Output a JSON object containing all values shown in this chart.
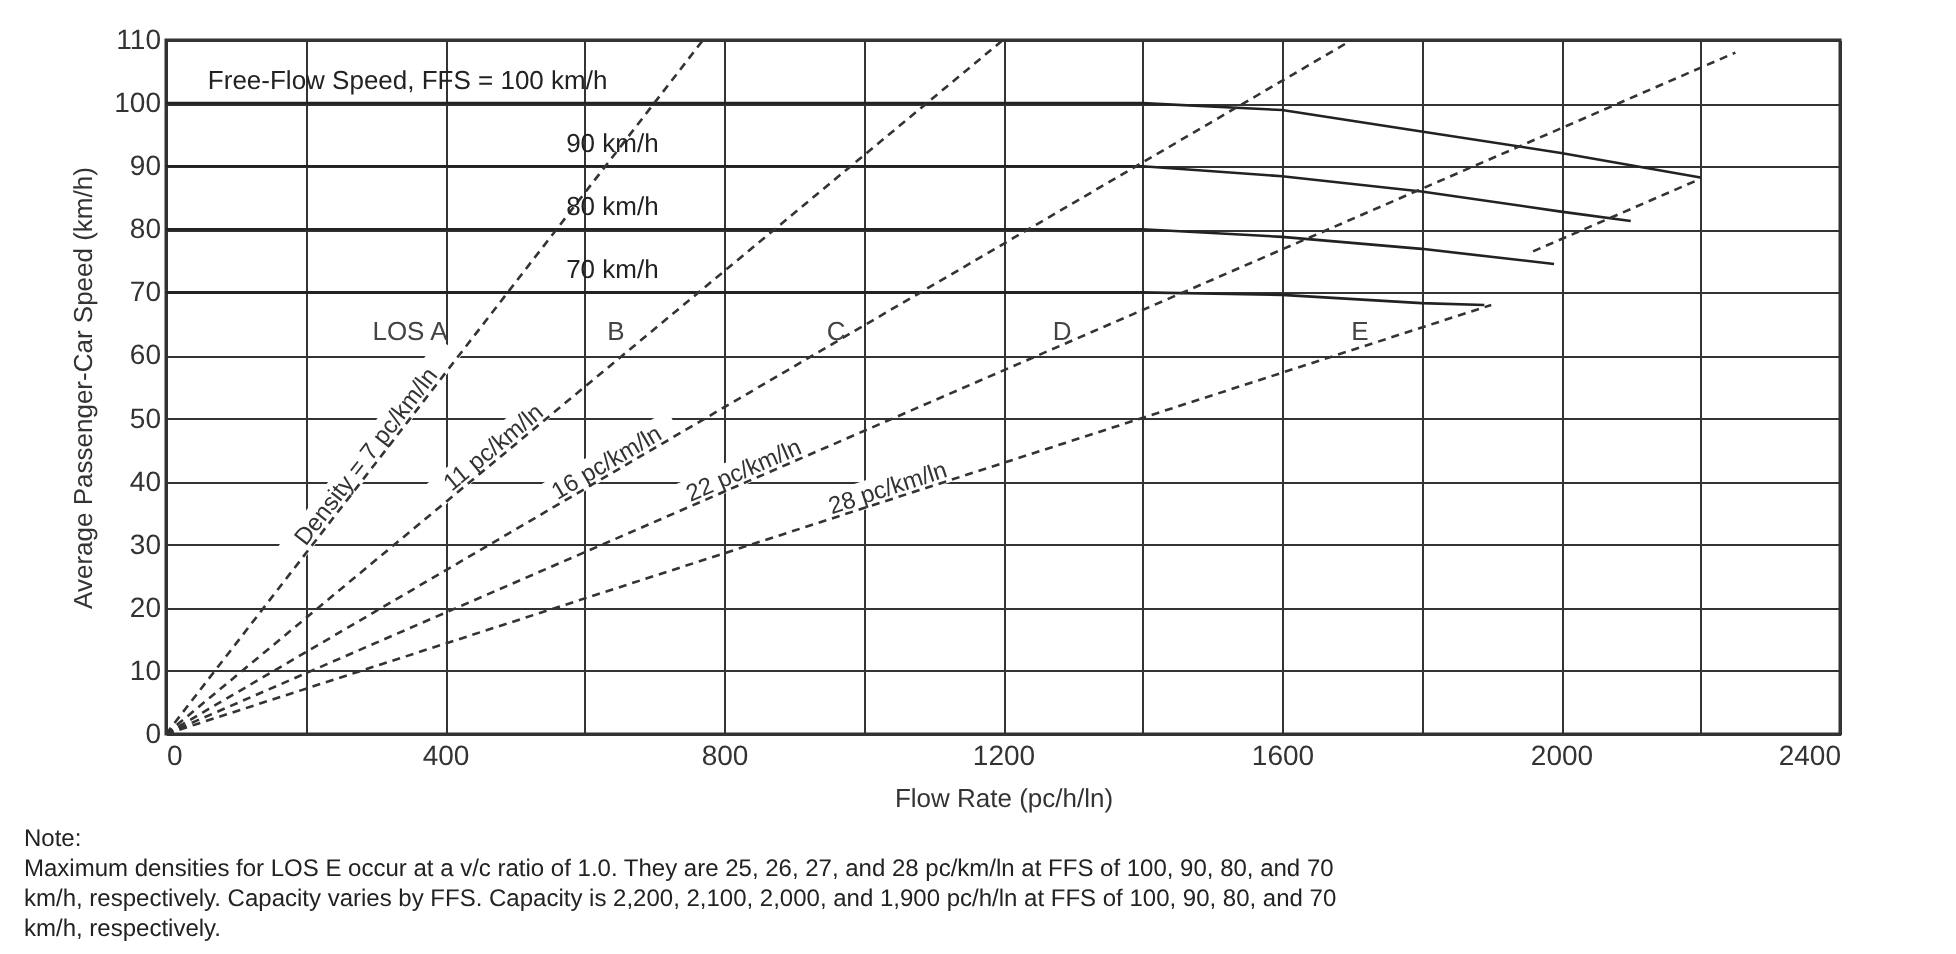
{
  "chart_data": {
    "type": "line",
    "xlabel": "Flow Rate (pc/h/ln)",
    "ylabel": "Average Passenger-Car Speed (km/h)",
    "xlim": [
      0,
      2400
    ],
    "ylim": [
      0,
      110
    ],
    "xticks": [
      0,
      {
        "value": 200,
        "label": null
      },
      400,
      {
        "value": 600,
        "label": null
      },
      800,
      {
        "value": 1000,
        "label": null
      },
      1200,
      {
        "value": 1400,
        "label": null
      },
      1600,
      {
        "value": 1800,
        "label": null
      },
      2000,
      {
        "value": 2200,
        "label": null
      },
      2400
    ],
    "yticks": [
      0,
      10,
      20,
      30,
      40,
      50,
      60,
      70,
      80,
      90,
      100,
      110
    ],
    "grid": true,
    "legend": false,
    "series": [
      {
        "name": "Free-Flow Speed, FFS = 100 km/h",
        "color": "#222222",
        "line_style": "solid",
        "x": [
          0,
          1400,
          1600,
          1800,
          2000,
          2200
        ],
        "values": [
          100,
          100,
          98.9,
          95.5,
          92.1,
          88.2
        ]
      },
      {
        "name": "90 km/h",
        "color": "#222222",
        "line_style": "solid",
        "x": [
          0,
          1400,
          1600,
          1800,
          2000,
          2100
        ],
        "values": [
          90,
          90,
          88.4,
          86.0,
          82.8,
          81.3
        ]
      },
      {
        "name": "80 km/h",
        "color": "#222222",
        "line_style": "solid",
        "x": [
          0,
          1400,
          1600,
          1800,
          1990
        ],
        "values": [
          80,
          80,
          78.8,
          76.9,
          74.5
        ]
      },
      {
        "name": "70 km/h",
        "color": "#222222",
        "line_style": "solid",
        "x": [
          0,
          1400,
          1600,
          1800,
          1890
        ],
        "values": [
          70,
          70,
          69.6,
          68.3,
          68
        ]
      },
      {
        "name": "Density = 7 pc/km/ln",
        "color": "#333333",
        "line_style": "dashed",
        "x": [
          0,
          770
        ],
        "values": [
          0,
          110
        ]
      },
      {
        "name": "11 pc/km/ln",
        "color": "#333333",
        "line_style": "dashed",
        "x": [
          0,
          1200
        ],
        "values": [
          0,
          110
        ]
      },
      {
        "name": "16 pc/km/ln",
        "color": "#333333",
        "line_style": "dashed",
        "x": [
          0,
          1700
        ],
        "values": [
          0,
          110
        ]
      },
      {
        "name": "22 pc/km/ln",
        "color": "#333333",
        "line_style": "dashed",
        "x": [
          0,
          2250
        ],
        "values": [
          0,
          108
        ]
      },
      {
        "name": "28 pc/km/ln",
        "color": "#333333",
        "line_style": "dashed",
        "x": [
          0,
          1900
        ],
        "values": [
          0,
          68
        ]
      },
      {
        "color": "#333333",
        "line_style": "dashed",
        "x": [
          1960,
          2200
        ],
        "values": [
          76.5,
          88
        ]
      }
    ],
    "annotations": [
      "LOS A",
      "B",
      "C",
      "D",
      "E",
      "Note:",
      "Maximum densities for LOS E occur at a v/c ratio of 1.0.  They are 25, 26, 27, and 28 pc/km/ln at FFS of 100, 90, 80, and 70 km/h, respectively.  Capacity varies by FFS.  Capacity is 2,200, 2,100, 2,000, and 1,900 pc/h/ln at FFS of 100, 90, 80, and 70 km/h, respectively."
    ]
  }
}
